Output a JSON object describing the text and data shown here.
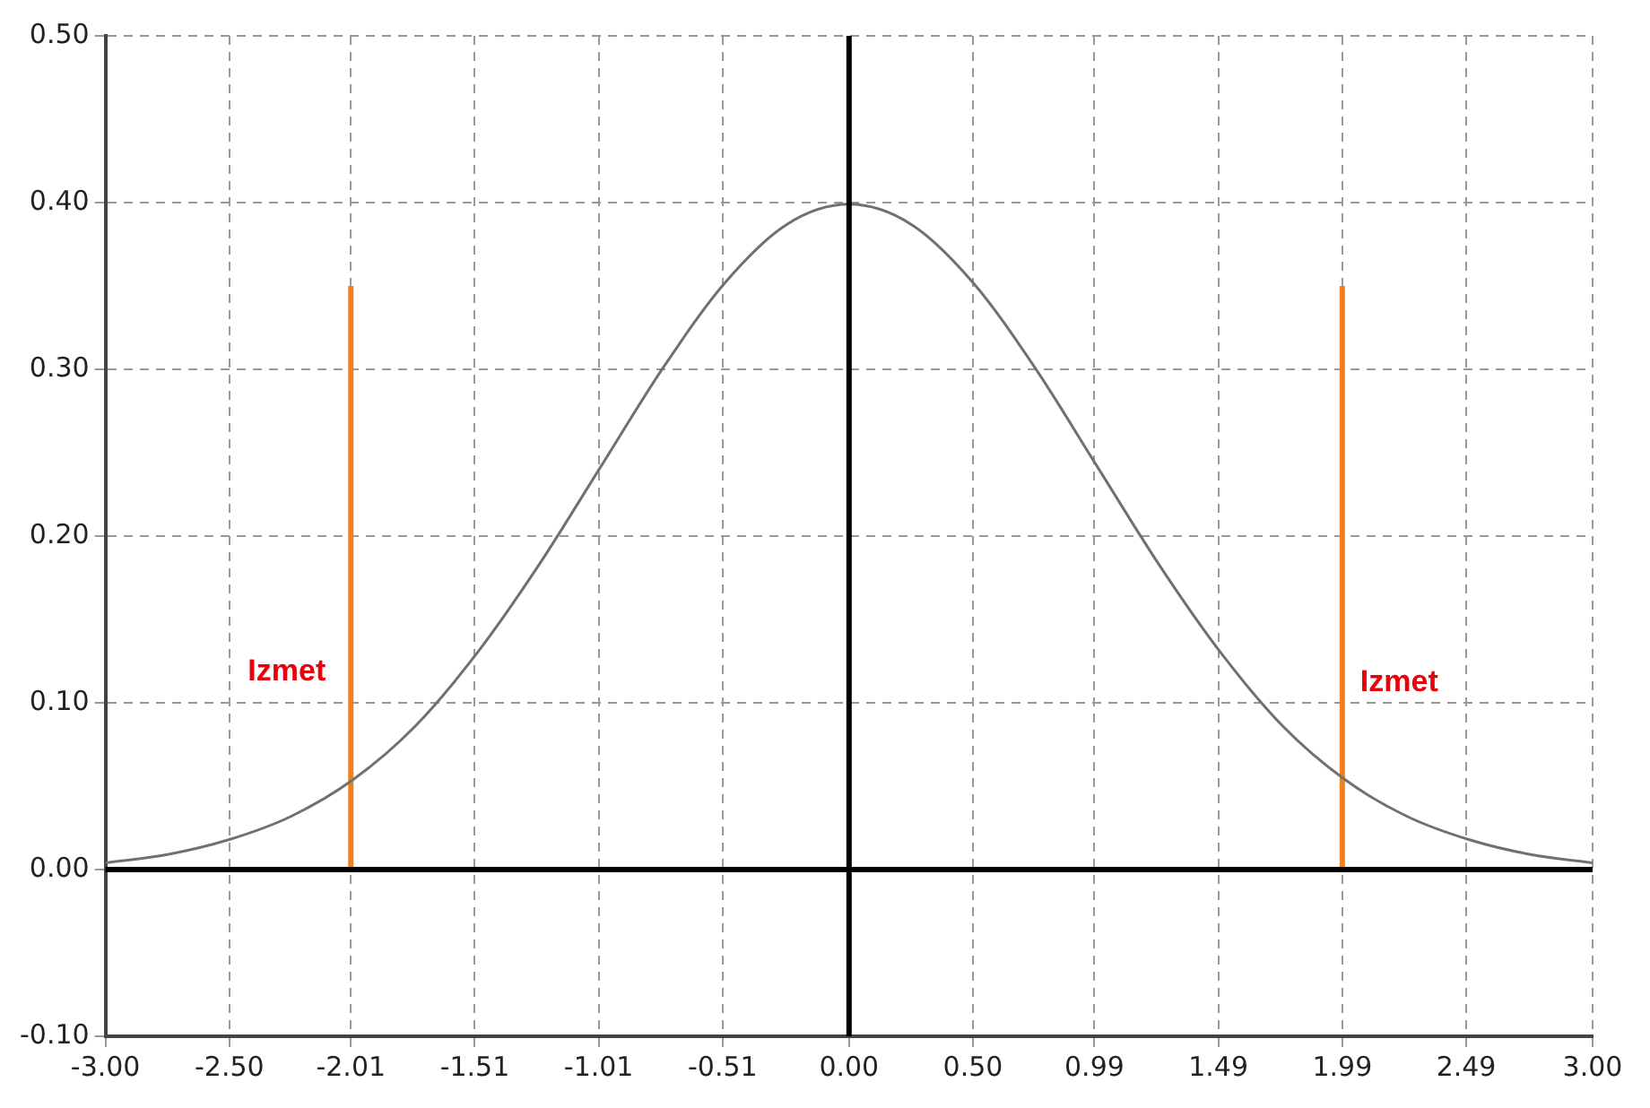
{
  "chart_data": {
    "type": "line",
    "series": [
      {
        "color": "#707070",
        "x": [
          -3,
          -2.75,
          -2.5,
          -2.25,
          -2,
          -1.75,
          -1.5,
          -1.25,
          -1,
          -0.75,
          -0.5,
          -0.25,
          0,
          0.25,
          0.5,
          0.75,
          1,
          1.25,
          1.5,
          1.75,
          2,
          2.25,
          2.5,
          2.75,
          3
        ],
        "values": [
          0.004,
          0.009,
          0.018,
          0.032,
          0.054,
          0.086,
          0.13,
          0.183,
          0.242,
          0.301,
          0.352,
          0.387,
          0.399,
          0.387,
          0.352,
          0.301,
          0.242,
          0.183,
          0.13,
          0.086,
          0.054,
          0.032,
          0.018,
          0.009,
          0.004
        ]
      },
      {
        "color": "#f08020",
        "x": [
          -2.01,
          -2.01
        ],
        "values": [
          0,
          0.35
        ]
      },
      {
        "color": "#f08020",
        "x": [
          1.99,
          1.99
        ],
        "values": [
          0,
          0.35
        ]
      }
    ],
    "xlim": [
      -3,
      3
    ],
    "xticks": [
      {
        "value": -3,
        "label": "-3.00"
      },
      {
        "value": -2.5,
        "label": "-2.50"
      },
      {
        "value": -2.01,
        "label": "-2.01"
      },
      {
        "value": -1.51,
        "label": "-1.51"
      },
      {
        "value": -1.01,
        "label": "-1.01"
      },
      {
        "value": -0.51,
        "label": "-0.51"
      },
      {
        "value": 0,
        "label": "0.00"
      },
      {
        "value": 0.5,
        "label": "0.50"
      },
      {
        "value": 0.99,
        "label": "0.99"
      },
      {
        "value": 1.49,
        "label": "1.49"
      },
      {
        "value": 1.99,
        "label": "1.99"
      },
      {
        "value": 2.49,
        "label": "2.49"
      },
      {
        "value": 3,
        "label": "3.00"
      }
    ],
    "ylim": [
      -0.1,
      0.5
    ],
    "yticks": [
      {
        "value": -0.1,
        "label": "-0.10"
      },
      {
        "value": 0,
        "label": "0.00"
      },
      {
        "value": 0.1,
        "label": "0.10"
      },
      {
        "value": 0.2,
        "label": "0.20"
      },
      {
        "value": 0.3,
        "label": "0.30"
      },
      {
        "value": 0.4,
        "label": "0.40"
      },
      {
        "value": 0.5,
        "label": "0.50"
      }
    ],
    "grid": true,
    "legend": false,
    "marker": "none",
    "line_style": "solid",
    "annotations": [
      "Izmet",
      "Izmet"
    ]
  }
}
